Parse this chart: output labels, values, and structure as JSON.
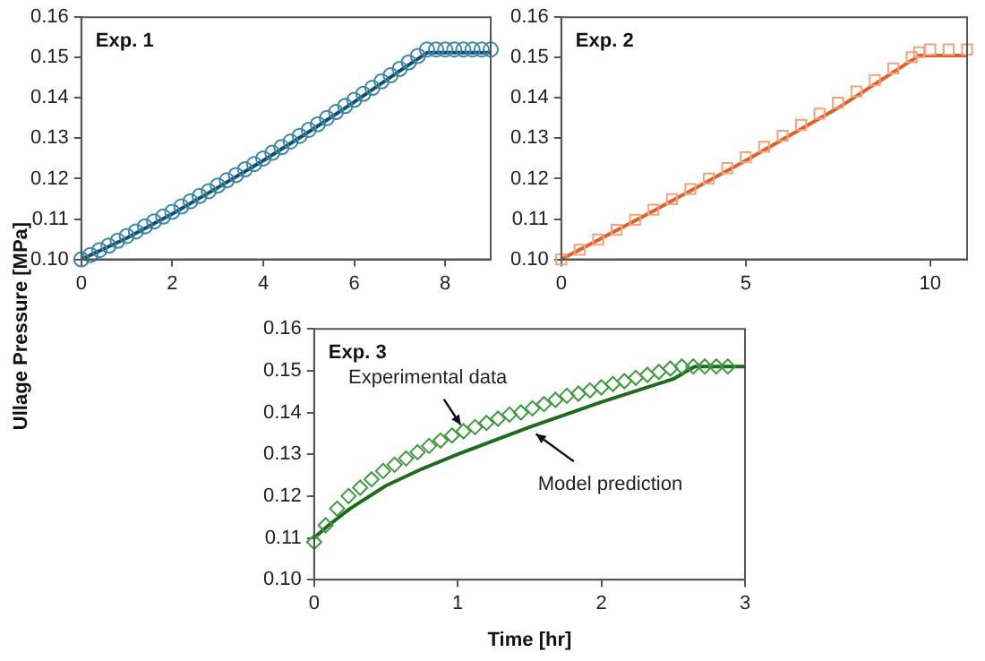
{
  "chart_data": [
    {
      "type": "scatter",
      "title": "Exp. 1",
      "xlim": [
        0,
        9
      ],
      "xticks": [
        0,
        2,
        4,
        6,
        8
      ],
      "ylim": [
        0.1,
        0.16
      ],
      "yticks": [
        {
          "value": 0.1,
          "label": "0.10"
        },
        {
          "value": 0.11,
          "label": "0.11"
        },
        {
          "value": 0.12,
          "label": "0.12"
        },
        {
          "value": 0.13,
          "label": "0.13"
        },
        {
          "value": 0.14,
          "label": "0.14"
        },
        {
          "value": 0.15,
          "label": "0.15"
        },
        {
          "value": 0.16,
          "label": "0.16"
        }
      ],
      "grid": false,
      "legend": false,
      "series": [
        {
          "type": "scatter",
          "marker": "circle",
          "color": "#3a87a8",
          "x": [
            0,
            0.2,
            0.4,
            0.6,
            0.8,
            1.0,
            1.2,
            1.4,
            1.6,
            1.8,
            2.0,
            2.2,
            2.4,
            2.6,
            2.8,
            3.0,
            3.2,
            3.4,
            3.6,
            3.8,
            4.0,
            4.2,
            4.4,
            4.6,
            4.8,
            5.0,
            5.2,
            5.4,
            5.6,
            5.8,
            6.0,
            6.2,
            6.4,
            6.6,
            6.8,
            7.0,
            7.2,
            7.4,
            7.6,
            7.8,
            8.0,
            8.2,
            8.4,
            8.6,
            8.8,
            9.0
          ],
          "values": [
            0.1,
            0.1011,
            0.1023,
            0.1034,
            0.1046,
            0.1058,
            0.1069,
            0.1082,
            0.1094,
            0.1106,
            0.1118,
            0.1131,
            0.1144,
            0.1157,
            0.1169,
            0.1183,
            0.1196,
            0.1209,
            0.1223,
            0.1236,
            0.125,
            0.1264,
            0.1278,
            0.1292,
            0.1306,
            0.1321,
            0.1335,
            0.135,
            0.1365,
            0.138,
            0.1395,
            0.141,
            0.1425,
            0.1441,
            0.1456,
            0.1472,
            0.1488,
            0.1504,
            0.152,
            0.152,
            0.152,
            0.152,
            0.152,
            0.152,
            0.152,
            0.152
          ]
        },
        {
          "type": "line",
          "marker": "none",
          "line_style": "solid",
          "color": "#0e4d6b",
          "x": [
            0,
            1,
            2,
            3,
            4,
            5,
            6,
            7,
            7.6,
            9
          ],
          "values": [
            0.1,
            0.1053,
            0.1113,
            0.1178,
            0.1245,
            0.1316,
            0.139,
            0.1467,
            0.1512,
            0.1512
          ]
        }
      ]
    },
    {
      "type": "scatter",
      "title": "Exp. 2",
      "xlim": [
        0,
        11
      ],
      "xticks": [
        0,
        5,
        10
      ],
      "ylim": [
        0.1,
        0.16
      ],
      "yticks": [
        {
          "value": 0.1,
          "label": "0.10"
        },
        {
          "value": 0.11,
          "label": "0.11"
        },
        {
          "value": 0.12,
          "label": "0.12"
        },
        {
          "value": 0.13,
          "label": "0.13"
        },
        {
          "value": 0.14,
          "label": "0.14"
        },
        {
          "value": 0.15,
          "label": "0.15"
        },
        {
          "value": 0.16,
          "label": "0.16"
        }
      ],
      "grid": false,
      "legend": false,
      "series": [
        {
          "type": "scatter",
          "marker": "square",
          "color": "#f4a27c",
          "x": [
            0,
            0.5,
            1,
            1.5,
            2,
            2.5,
            3,
            3.5,
            4,
            4.5,
            5,
            5.5,
            6,
            6.5,
            7,
            7.5,
            8,
            8.5,
            9,
            9.5,
            9.7,
            10,
            10.5,
            11
          ],
          "values": [
            0.1,
            0.1024,
            0.1049,
            0.1073,
            0.1098,
            0.1123,
            0.1149,
            0.1174,
            0.12,
            0.1226,
            0.1253,
            0.1279,
            0.1306,
            0.1333,
            0.1361,
            0.1388,
            0.1416,
            0.1444,
            0.1473,
            0.1501,
            0.1513,
            0.152,
            0.152,
            0.152
          ]
        },
        {
          "type": "line",
          "marker": "none",
          "line_style": "solid",
          "color": "#e0602a",
          "x": [
            0,
            2.5,
            5,
            7.5,
            9.7,
            11
          ],
          "values": [
            0.1,
            0.112,
            0.1245,
            0.1375,
            0.1505,
            0.1505
          ]
        }
      ]
    },
    {
      "type": "scatter",
      "title": "Exp. 3",
      "xlabel": "Time [hr]",
      "ylabel": "Ullage Pressure [MPa]",
      "xlim": [
        0,
        3
      ],
      "xticks": [
        0,
        1,
        2,
        3
      ],
      "ylim": [
        0.1,
        0.16
      ],
      "yticks": [
        {
          "value": 0.1,
          "label": "0.10"
        },
        {
          "value": 0.11,
          "label": "0.11"
        },
        {
          "value": 0.12,
          "label": "0.12"
        },
        {
          "value": 0.13,
          "label": "0.13"
        },
        {
          "value": 0.14,
          "label": "0.14"
        },
        {
          "value": 0.15,
          "label": "0.15"
        },
        {
          "value": 0.16,
          "label": "0.16"
        }
      ],
      "grid": false,
      "legend": false,
      "annotations": [
        {
          "text": "Experimental data",
          "x": 1.04,
          "y": 0.1355
        },
        {
          "text": "Model prediction",
          "x": 1.5,
          "y": 0.1365
        }
      ],
      "series": [
        {
          "type": "scatter",
          "marker": "diamond",
          "color": "#3d9a3d",
          "x": [
            0,
            0.08,
            0.16,
            0.24,
            0.32,
            0.4,
            0.48,
            0.56,
            0.64,
            0.72,
            0.8,
            0.88,
            0.96,
            1.04,
            1.12,
            1.2,
            1.28,
            1.36,
            1.44,
            1.52,
            1.6,
            1.68,
            1.76,
            1.84,
            1.92,
            2.0,
            2.08,
            2.16,
            2.24,
            2.32,
            2.4,
            2.48,
            2.56,
            2.64,
            2.72,
            2.8,
            2.88
          ],
          "values": [
            0.109,
            0.113,
            0.117,
            0.12,
            0.122,
            0.124,
            0.126,
            0.1275,
            0.129,
            0.1305,
            0.132,
            0.1333,
            0.1345,
            0.1355,
            0.1365,
            0.1375,
            0.1385,
            0.1395,
            0.14,
            0.141,
            0.142,
            0.143,
            0.144,
            0.1445,
            0.1453,
            0.146,
            0.1468,
            0.1475,
            0.1483,
            0.149,
            0.1497,
            0.1505,
            0.151,
            0.151,
            0.151,
            0.151,
            0.151
          ]
        },
        {
          "type": "line",
          "marker": "none",
          "line_style": "solid",
          "color": "#1e6b1e",
          "x": [
            0,
            0.1,
            0.25,
            0.5,
            0.75,
            1,
            1.5,
            2,
            2.5,
            2.65,
            3
          ],
          "values": [
            0.11,
            0.113,
            0.117,
            0.1225,
            0.1265,
            0.13,
            0.1365,
            0.1425,
            0.148,
            0.151,
            0.151
          ]
        }
      ]
    }
  ]
}
